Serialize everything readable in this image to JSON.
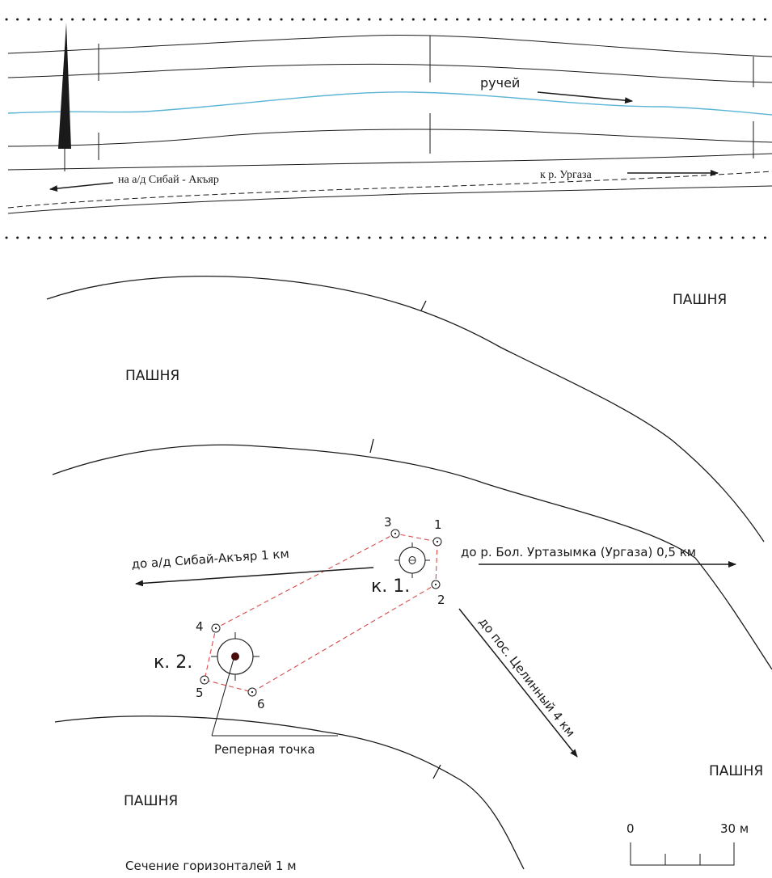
{
  "inset": {
    "stream_label": "ручей",
    "road_left_label": "на а/д Сибай - Акъяр",
    "road_right_label": "к р. Ургаза"
  },
  "fields": {
    "top_right": "ПАШНЯ",
    "top_left": "ПАШНЯ",
    "bottom_right": "ПАШНЯ",
    "bottom_left": "ПАШНЯ"
  },
  "directions": {
    "west": "до а/д Сибай-Акъяр 1 км",
    "east": "до р. Бол. Уртазымка (Ургаза) 0,5 км",
    "southeast": "до пос. Целинный 4 км"
  },
  "kurgans": {
    "k1": "к. 1.",
    "k2": "к. 2."
  },
  "points": [
    "1",
    "2",
    "3",
    "4",
    "5",
    "6"
  ],
  "benchmark_label": "Реперная точка",
  "scale": {
    "start": "0",
    "end": "30 м"
  },
  "contour_interval": "Сечение горизонталей 1 м",
  "colors": {
    "stream": "#5ab4d6",
    "outline": "#d84a4a",
    "benchmark": "#4a0a0a",
    "ink": "#1a1a1a"
  }
}
